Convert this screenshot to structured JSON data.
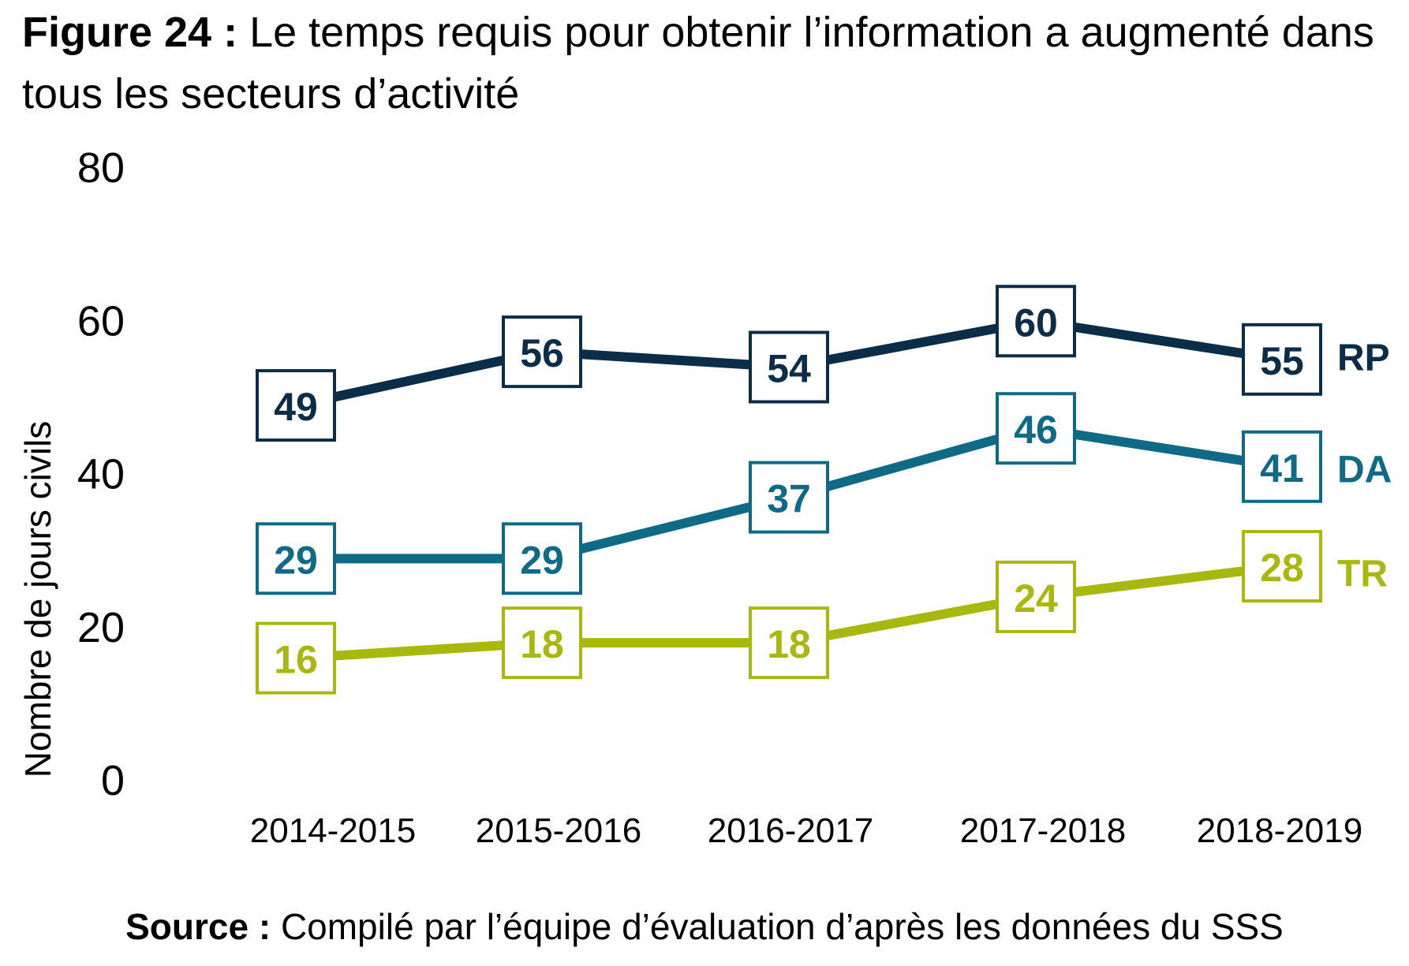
{
  "figure": {
    "title_lead": "Figure 24 :",
    "title_text": "Le temps requis pour obtenir l’information a augmenté dans tous les secteurs d’activité",
    "source_lead": "Source :",
    "source_text": "Compilé par l’équipe d’évaluation d’après les données du SSS"
  },
  "colors": {
    "RP": "#0b2d48",
    "DA": "#0f6a86",
    "TR": "#a8b80f"
  },
  "chart_data": {
    "type": "line",
    "title": "Figure 24 : Le temps requis pour obtenir l’information a augmenté dans tous les secteurs d’activité",
    "xlabel": "",
    "ylabel": "Nombre de jours civils",
    "categories": [
      "2014-2015",
      "2015-2016",
      "2016-2017",
      "2017-2018",
      "2018-2019"
    ],
    "ylim": [
      0,
      80
    ],
    "yticks": [
      0,
      20,
      40,
      60,
      80
    ],
    "grid": false,
    "legend": "labels at right end of each line",
    "series": [
      {
        "name": "RP",
        "values": [
          49,
          56,
          54,
          60,
          55
        ]
      },
      {
        "name": "DA",
        "values": [
          29,
          29,
          37,
          46,
          41
        ]
      },
      {
        "name": "TR",
        "values": [
          16,
          18,
          18,
          24,
          28
        ]
      }
    ]
  }
}
